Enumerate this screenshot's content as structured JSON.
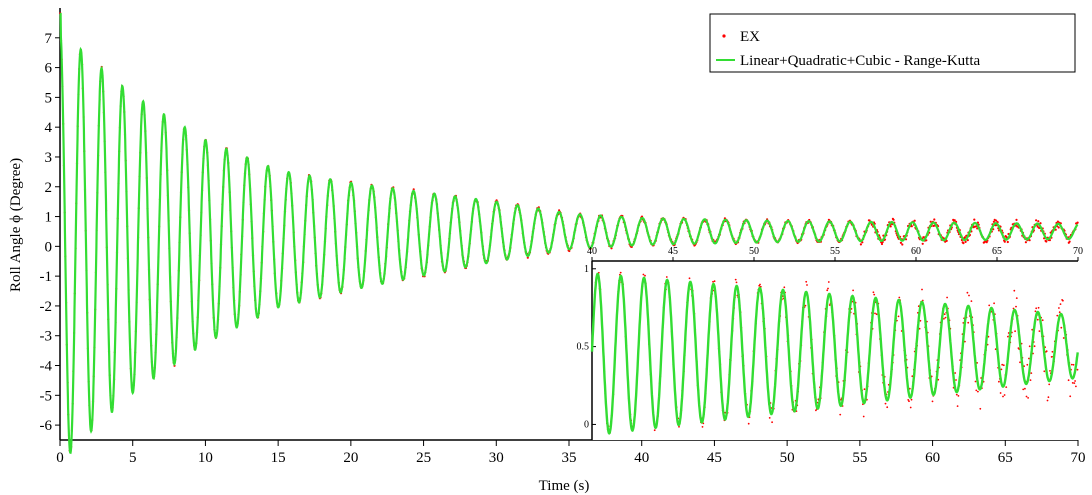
{
  "chart_data": [
    {
      "type": "line",
      "role": "main",
      "xlabel": "Time (s)",
      "ylabel": "Roll Angle ϕ (Degree)",
      "xlim": [
        0,
        70
      ],
      "ylim": [
        -6.5,
        8
      ],
      "xticks": [
        0,
        5,
        10,
        15,
        20,
        25,
        30,
        35,
        40,
        45,
        50,
        55,
        60,
        65,
        70
      ],
      "yticks": [
        -6,
        -5,
        -4,
        -3,
        -2,
        -1,
        0,
        1,
        2,
        3,
        4,
        5,
        6,
        7
      ],
      "legend": {
        "placement": "top-right",
        "entries": [
          {
            "label": "EX",
            "style": "dots",
            "color": "#ff0000"
          },
          {
            "label": "Linear+Quadratic+Cubic - Range-Kutta",
            "style": "line",
            "color": "#33dd33"
          }
        ]
      },
      "series": [
        {
          "kind": "damped-oscillation",
          "period_s": 1.43,
          "mean": 0.5,
          "envelope": [
            [
              0,
              7.3
            ],
            [
              2,
              6.3
            ],
            [
              5,
              5.0
            ],
            [
              10,
              3.4
            ],
            [
              15,
              2.3
            ],
            [
              20,
              1.8
            ],
            [
              25,
              1.4
            ],
            [
              30,
              1.0
            ],
            [
              35,
              0.6
            ],
            [
              40,
              0.45
            ],
            [
              50,
              0.35
            ],
            [
              60,
              0.3
            ],
            [
              70,
              0.25
            ]
          ],
          "initial_value": 7.8
        }
      ]
    },
    {
      "type": "line",
      "role": "inset",
      "xlim": [
        40,
        70
      ],
      "ylim": [
        -0.1,
        1.05
      ],
      "xticks": [
        40,
        45,
        50,
        55,
        60,
        65,
        70
      ],
      "yticks": [
        0,
        0.5,
        1
      ],
      "ytick_labels": [
        "0",
        "0.5",
        "1"
      ]
    }
  ],
  "colors": {
    "experimental": "#ff0000",
    "model": "#33dd33",
    "axis": "#000000"
  }
}
